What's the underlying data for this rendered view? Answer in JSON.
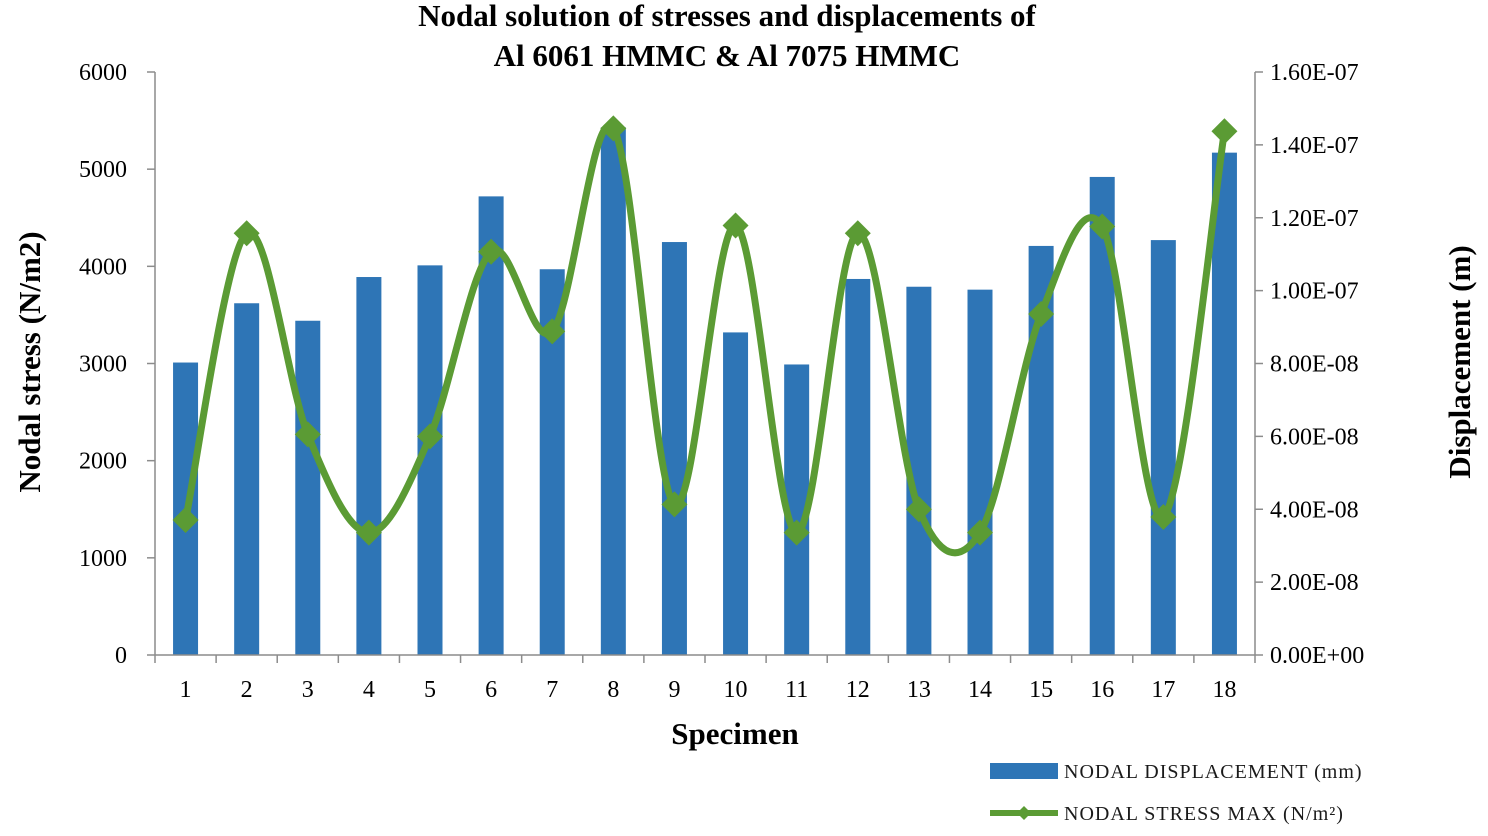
{
  "chart_data": {
    "type": "bar+line",
    "title_lines": [
      "Nodal solution of stresses and displacements of",
      "Al 6061 HMMC & Al 7075  HMMC"
    ],
    "xlabel": "Specimen",
    "ylabel_left": "Nodal stress (N/m2)",
    "ylabel_right": "Displacement (m)",
    "categories": [
      "1",
      "2",
      "3",
      "4",
      "5",
      "6",
      "7",
      "8",
      "9",
      "10",
      "11",
      "12",
      "13",
      "14",
      "15",
      "16",
      "17",
      "18"
    ],
    "ylim_left": [
      0,
      6000
    ],
    "yticks_left": [
      "0",
      "1000",
      "2000",
      "3000",
      "4000",
      "5000",
      "6000"
    ],
    "ylim_right": [
      0,
      1.6e-07
    ],
    "yticks_right": [
      "0.00E+00",
      "2.00E-08",
      "4.00E-08",
      "6.00E-08",
      "8.00E-08",
      "1.00E-07",
      "1.20E-07",
      "1.40E-07",
      "1.60E-07"
    ],
    "series": [
      {
        "name": "NODAL DISPLACEMENT (mm)",
        "kind": "bar",
        "axis": "left",
        "color": "#2e75b6",
        "values": [
          3010,
          3620,
          3440,
          3890,
          4010,
          4720,
          3970,
          5430,
          4250,
          3320,
          2990,
          3870,
          3790,
          3760,
          4210,
          4920,
          4270,
          5170
        ]
      },
      {
        "name": "NODAL  STRESS MAX (N/m²)",
        "kind": "line",
        "axis": "left",
        "color": "#5b9b34",
        "values": [
          1390,
          4340,
          2270,
          1260,
          2250,
          4150,
          3330,
          5420,
          1550,
          4420,
          1260,
          4340,
          1500,
          1260,
          3510,
          4410,
          1420,
          5390
        ]
      }
    ],
    "legend_position": "bottom-right",
    "grid": false
  }
}
